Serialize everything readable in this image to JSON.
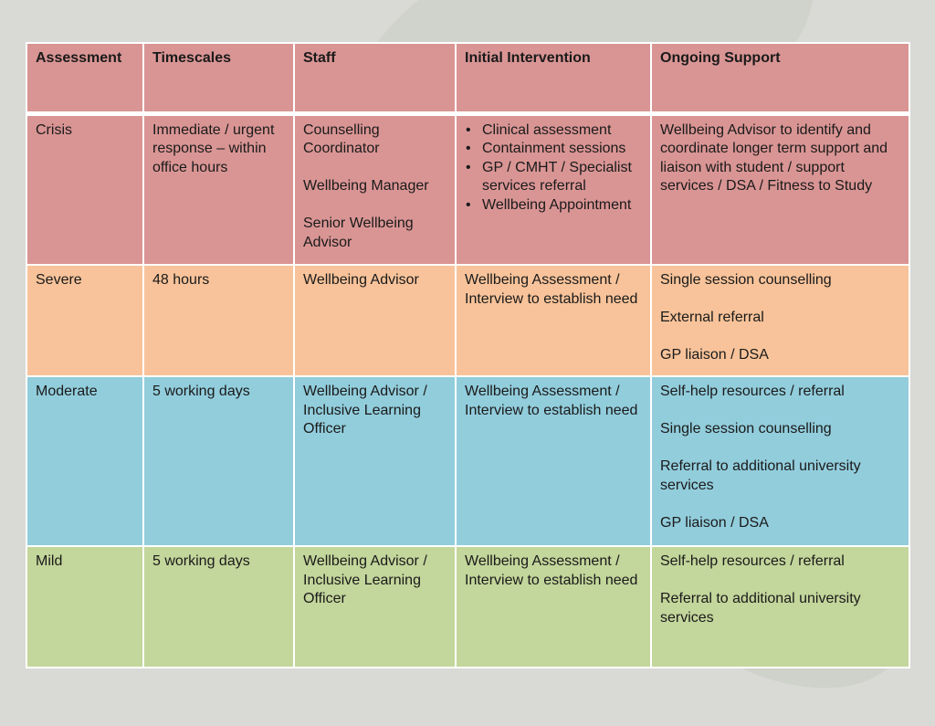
{
  "colors": {
    "background": "#d9d9d6",
    "crisis": "#d99594",
    "severe": "#f8c39a",
    "moderate": "#92cddc",
    "mild": "#c3d69b",
    "grid": "#ffffff"
  },
  "headers": {
    "assessment": "Assessment",
    "timescales": "Timescales",
    "staff": "Staff",
    "initial_intervention": "Initial Intervention",
    "ongoing_support": "Ongoing Support"
  },
  "rows": [
    {
      "assessment": "Crisis",
      "timescales": "Immediate / urgent response – within office hours",
      "staff": [
        "Counselling Coordinator",
        "Wellbeing Manager",
        "Senior Wellbeing Advisor"
      ],
      "initial_intervention": [
        "Clinical assessment",
        "Containment sessions",
        "GP / CMHT / Specialist services referral",
        "Wellbeing Appointment"
      ],
      "ongoing_support": [
        "Wellbeing Advisor to identify and coordinate longer term support and liaison with student / support services / DSA / Fitness to Study"
      ]
    },
    {
      "assessment": "Severe",
      "timescales": "48 hours",
      "staff": [
        "Wellbeing Advisor"
      ],
      "initial_intervention": "Wellbeing Assessment / Interview to establish need",
      "ongoing_support": [
        "Single session counselling",
        "External referral",
        "GP liaison / DSA"
      ]
    },
    {
      "assessment": "Moderate",
      "timescales": "5 working days",
      "staff": [
        "Wellbeing Advisor / Inclusive Learning Officer"
      ],
      "initial_intervention": "Wellbeing Assessment / Interview to establish need",
      "ongoing_support": [
        "Self-help resources / referral",
        "Single session counselling",
        "Referral to additional university services",
        "GP liaison / DSA"
      ]
    },
    {
      "assessment": "Mild",
      "timescales": "5 working days",
      "staff": [
        "Wellbeing Advisor / Inclusive Learning Officer"
      ],
      "initial_intervention": "Wellbeing Assessment / Interview to establish need",
      "ongoing_support": [
        "Self-help resources / referral",
        "Referral to additional university services"
      ]
    }
  ]
}
